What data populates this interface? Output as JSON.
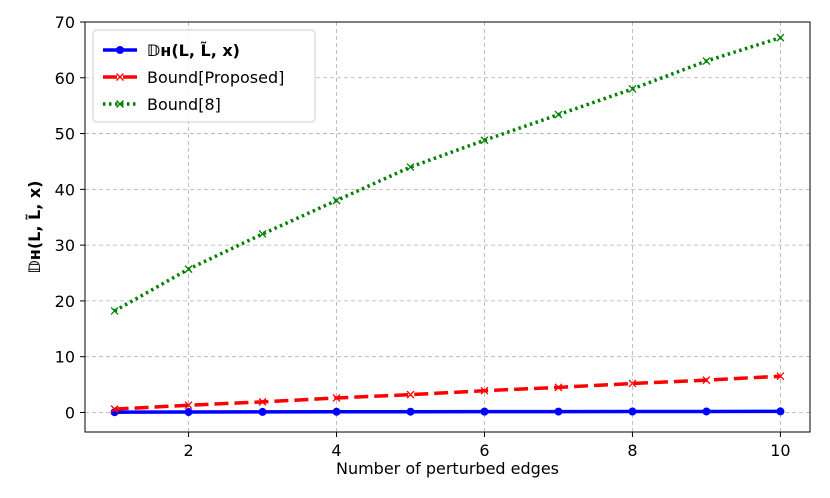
{
  "chart_data": {
    "type": "line",
    "xlabel": "Number of perturbed edges",
    "ylabel": "𝔻ʜ(L, L̃, x)",
    "x": [
      1,
      2,
      3,
      4,
      5,
      6,
      7,
      8,
      9,
      10
    ],
    "xlim": [
      0.6,
      10.4
    ],
    "ylim": [
      -3.5,
      70
    ],
    "xticks": [
      2,
      4,
      6,
      8,
      10
    ],
    "yticks": [
      0,
      10,
      20,
      30,
      40,
      50,
      60,
      70
    ],
    "grid": true,
    "legend_position": "top-left",
    "series": [
      {
        "name": "𝔻ʜ(L, L̃, x)",
        "color": "#0000ff",
        "style": "solid",
        "marker": "circle",
        "values": [
          0.05,
          0.08,
          0.1,
          0.12,
          0.14,
          0.15,
          0.16,
          0.17,
          0.18,
          0.19
        ]
      },
      {
        "name": "Bound[Proposed]",
        "color": "#ff0000",
        "style": "dashed",
        "marker": "x",
        "values": [
          0.6,
          1.3,
          1.9,
          2.6,
          3.2,
          3.9,
          4.5,
          5.2,
          5.8,
          6.5
        ]
      },
      {
        "name": "Bound[8]",
        "color": "#008000",
        "style": "dotted",
        "marker": "x",
        "values": [
          18.2,
          25.7,
          32.0,
          38.0,
          44.0,
          48.8,
          53.4,
          58.0,
          63.0,
          67.2
        ]
      }
    ]
  }
}
